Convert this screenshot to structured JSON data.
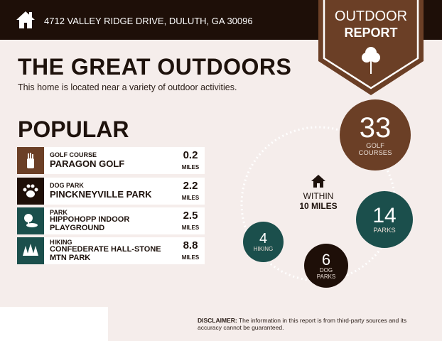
{
  "header": {
    "address": "4712 VALLEY RIDGE DRIVE, DULUTH, GA 30096",
    "home_icon": "home-icon"
  },
  "badge": {
    "line1": "OUTDOOR",
    "line2": "REPORT",
    "icon": "tree-icon",
    "color": "#6b3f26"
  },
  "title": "THE GREAT OUTDOORS",
  "subtitle": "This home is located near a variety of outdoor activities.",
  "popular": {
    "heading": "POPULAR",
    "items": [
      {
        "category": "GOLF COURSE",
        "name": "PARAGON GOLF",
        "distance": "0.2",
        "unit": "MILES",
        "icon": "golf-bag-icon",
        "color": "#6b3f26"
      },
      {
        "category": "DOG PARK",
        "name": "PINCKNEYVILLE PARK",
        "distance": "2.2",
        "unit": "MILES",
        "icon": "paw-icon",
        "color": "#1e0f08"
      },
      {
        "category": "PARK",
        "name": "HIPPOHOPP INDOOR PLAYGROUND",
        "distance": "2.5",
        "unit": "MILES",
        "icon": "park-icon",
        "color": "#1b4f4c"
      },
      {
        "category": "HIKING",
        "name": "CONFEDERATE HALL-STONE MTN PARK",
        "distance": "8.8",
        "unit": "MILES",
        "icon": "pine-trees-icon",
        "color": "#1b4f4c"
      }
    ]
  },
  "within": {
    "line1": "WITHIN",
    "line2": "10 MILES"
  },
  "counts": [
    {
      "value": "33",
      "label1": "GOLF",
      "label2": "COURSES",
      "color": "#6b3f26"
    },
    {
      "value": "14",
      "label1": "PARKS",
      "label2": "",
      "color": "#1b4f4c"
    },
    {
      "value": "4",
      "label1": "HIKING",
      "label2": "",
      "color": "#1b4f4c"
    },
    {
      "value": "6",
      "label1": "DOG",
      "label2": "PARKS",
      "color": "#1e0f08"
    }
  ],
  "disclaimer": {
    "label": "DISCLAIMER:",
    "text": " The information in this report is from third-party sources and its accuracy cannot be guaranteed."
  }
}
